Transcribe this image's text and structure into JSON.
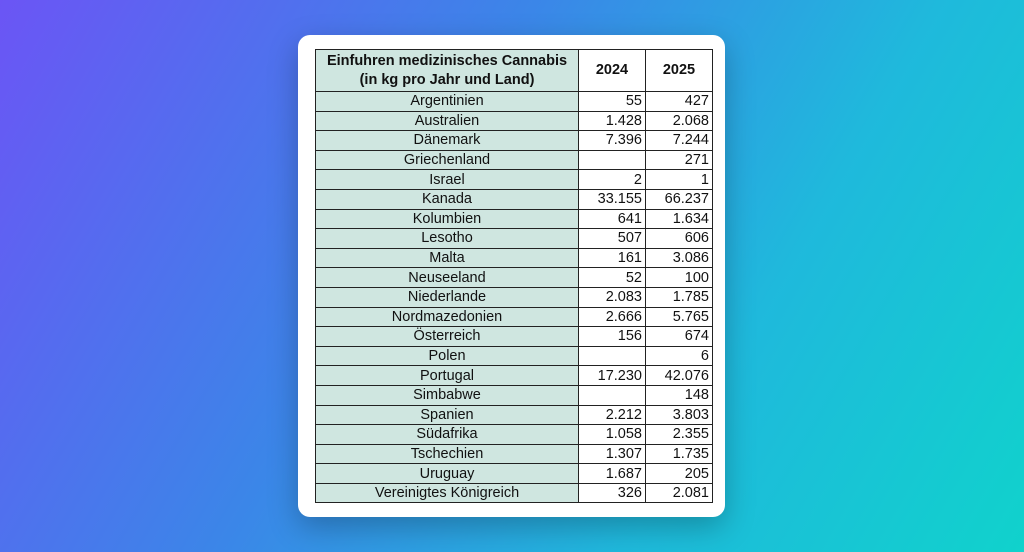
{
  "table": {
    "header": {
      "title_line1": "Einfuhren medizinisches Cannabis",
      "title_line2": "(in kg pro Jahr und Land)",
      "col_2024": "2024",
      "col_2025": "2025"
    },
    "rows": [
      {
        "country": "Argentinien",
        "v2024": "55",
        "v2025": "427"
      },
      {
        "country": "Australien",
        "v2024": "1.428",
        "v2025": "2.068"
      },
      {
        "country": "Dänemark",
        "v2024": "7.396",
        "v2025": "7.244"
      },
      {
        "country": "Griechenland",
        "v2024": "",
        "v2025": "271"
      },
      {
        "country": "Israel",
        "v2024": "2",
        "v2025": "1"
      },
      {
        "country": "Kanada",
        "v2024": "33.155",
        "v2025": "66.237"
      },
      {
        "country": "Kolumbien",
        "v2024": "641",
        "v2025": "1.634"
      },
      {
        "country": "Lesotho",
        "v2024": "507",
        "v2025": "606"
      },
      {
        "country": "Malta",
        "v2024": "161",
        "v2025": "3.086"
      },
      {
        "country": "Neuseeland",
        "v2024": "52",
        "v2025": "100"
      },
      {
        "country": "Niederlande",
        "v2024": "2.083",
        "v2025": "1.785"
      },
      {
        "country": "Nordmazedonien",
        "v2024": "2.666",
        "v2025": "5.765"
      },
      {
        "country": "Österreich",
        "v2024": "156",
        "v2025": "674"
      },
      {
        "country": "Polen",
        "v2024": "",
        "v2025": "6"
      },
      {
        "country": "Portugal",
        "v2024": "17.230",
        "v2025": "42.076"
      },
      {
        "country": "Simbabwe",
        "v2024": "",
        "v2025": "148"
      },
      {
        "country": "Spanien",
        "v2024": "2.212",
        "v2025": "3.803"
      },
      {
        "country": "Südafrika",
        "v2024": "1.058",
        "v2025": "2.355"
      },
      {
        "country": "Tschechien",
        "v2024": "1.307",
        "v2025": "1.735"
      },
      {
        "country": "Uruguay",
        "v2024": "1.687",
        "v2025": "205"
      },
      {
        "country": "Vereinigtes Königreich",
        "v2024": "326",
        "v2025": "2.081"
      }
    ]
  },
  "colors": {
    "country_cell": "#cfe6e0",
    "card": "#ffffff",
    "gradient_start": "#6b55f5",
    "gradient_end": "#10d2cc"
  }
}
